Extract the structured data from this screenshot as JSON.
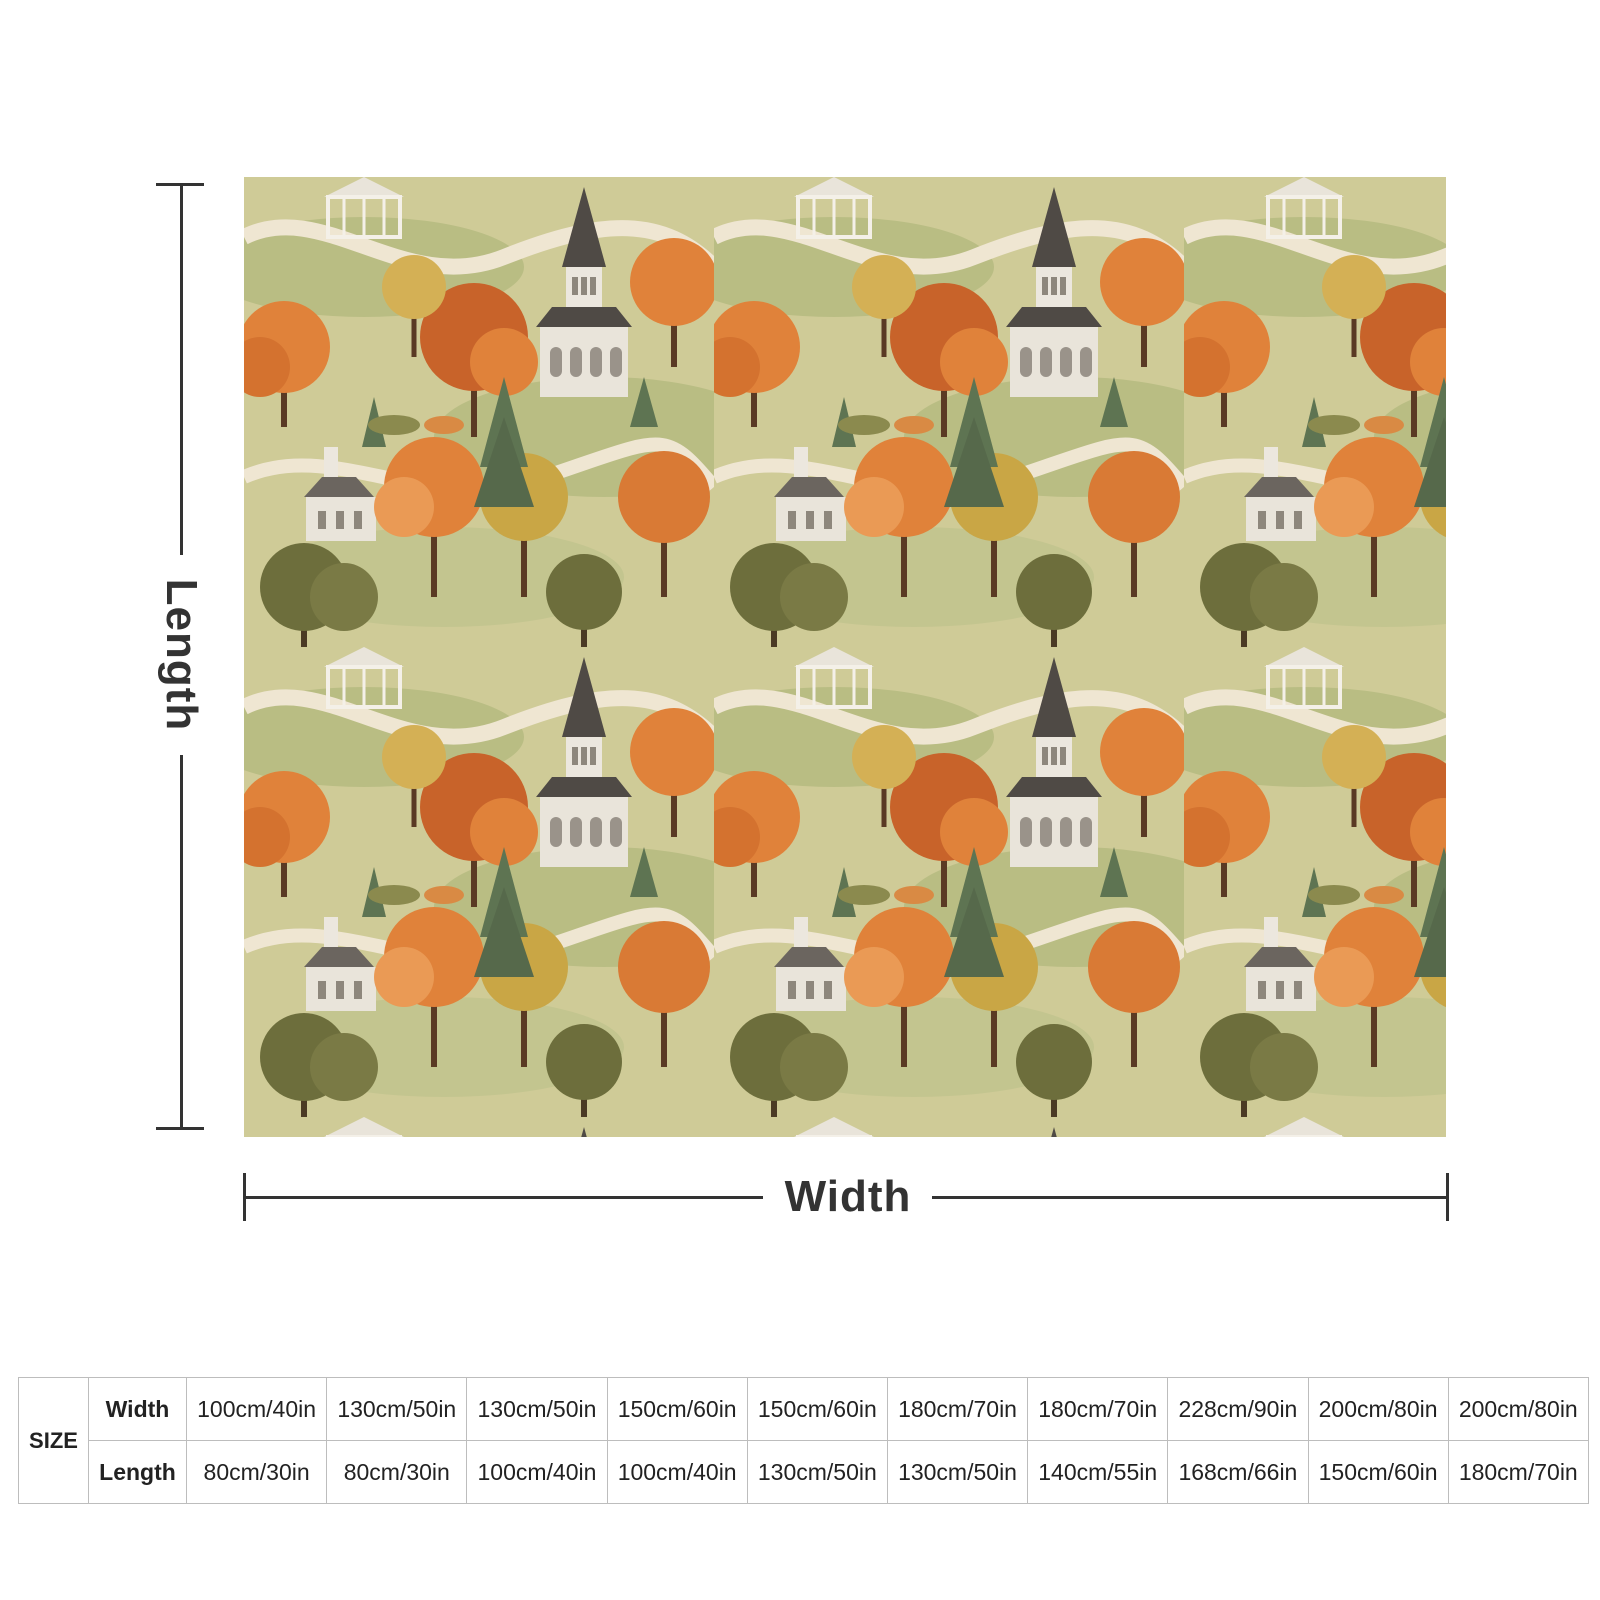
{
  "dimensions": {
    "length_label": "Length",
    "width_label": "Width"
  },
  "artwork": {
    "description_icon": "autumn-village-pattern",
    "colors": {
      "background": "#d8d3a8",
      "orange_tree": "#e0823a",
      "dark_orange_tree": "#c8632a",
      "yellow_tree": "#c9a645",
      "green_tree": "#6d6e3c",
      "pine": "#5e7452",
      "building": "#e9e4da",
      "roof": "#4f4a45",
      "path": "#efe6d2",
      "grass": "#b9bd83"
    }
  },
  "size_table": {
    "size_label": "SIZE",
    "width_label": "Width",
    "length_label": "Length",
    "widths": [
      "100cm/40in",
      "130cm/50in",
      "130cm/50in",
      "150cm/60in",
      "150cm/60in",
      "180cm/70in",
      "180cm/70in",
      "228cm/90in",
      "200cm/80in",
      "200cm/80in"
    ],
    "lengths": [
      "80cm/30in",
      "80cm/30in",
      "100cm/40in",
      "100cm/40in",
      "130cm/50in",
      "130cm/50in",
      "140cm/55in",
      "168cm/66in",
      "150cm/60in",
      "180cm/70in"
    ]
  }
}
